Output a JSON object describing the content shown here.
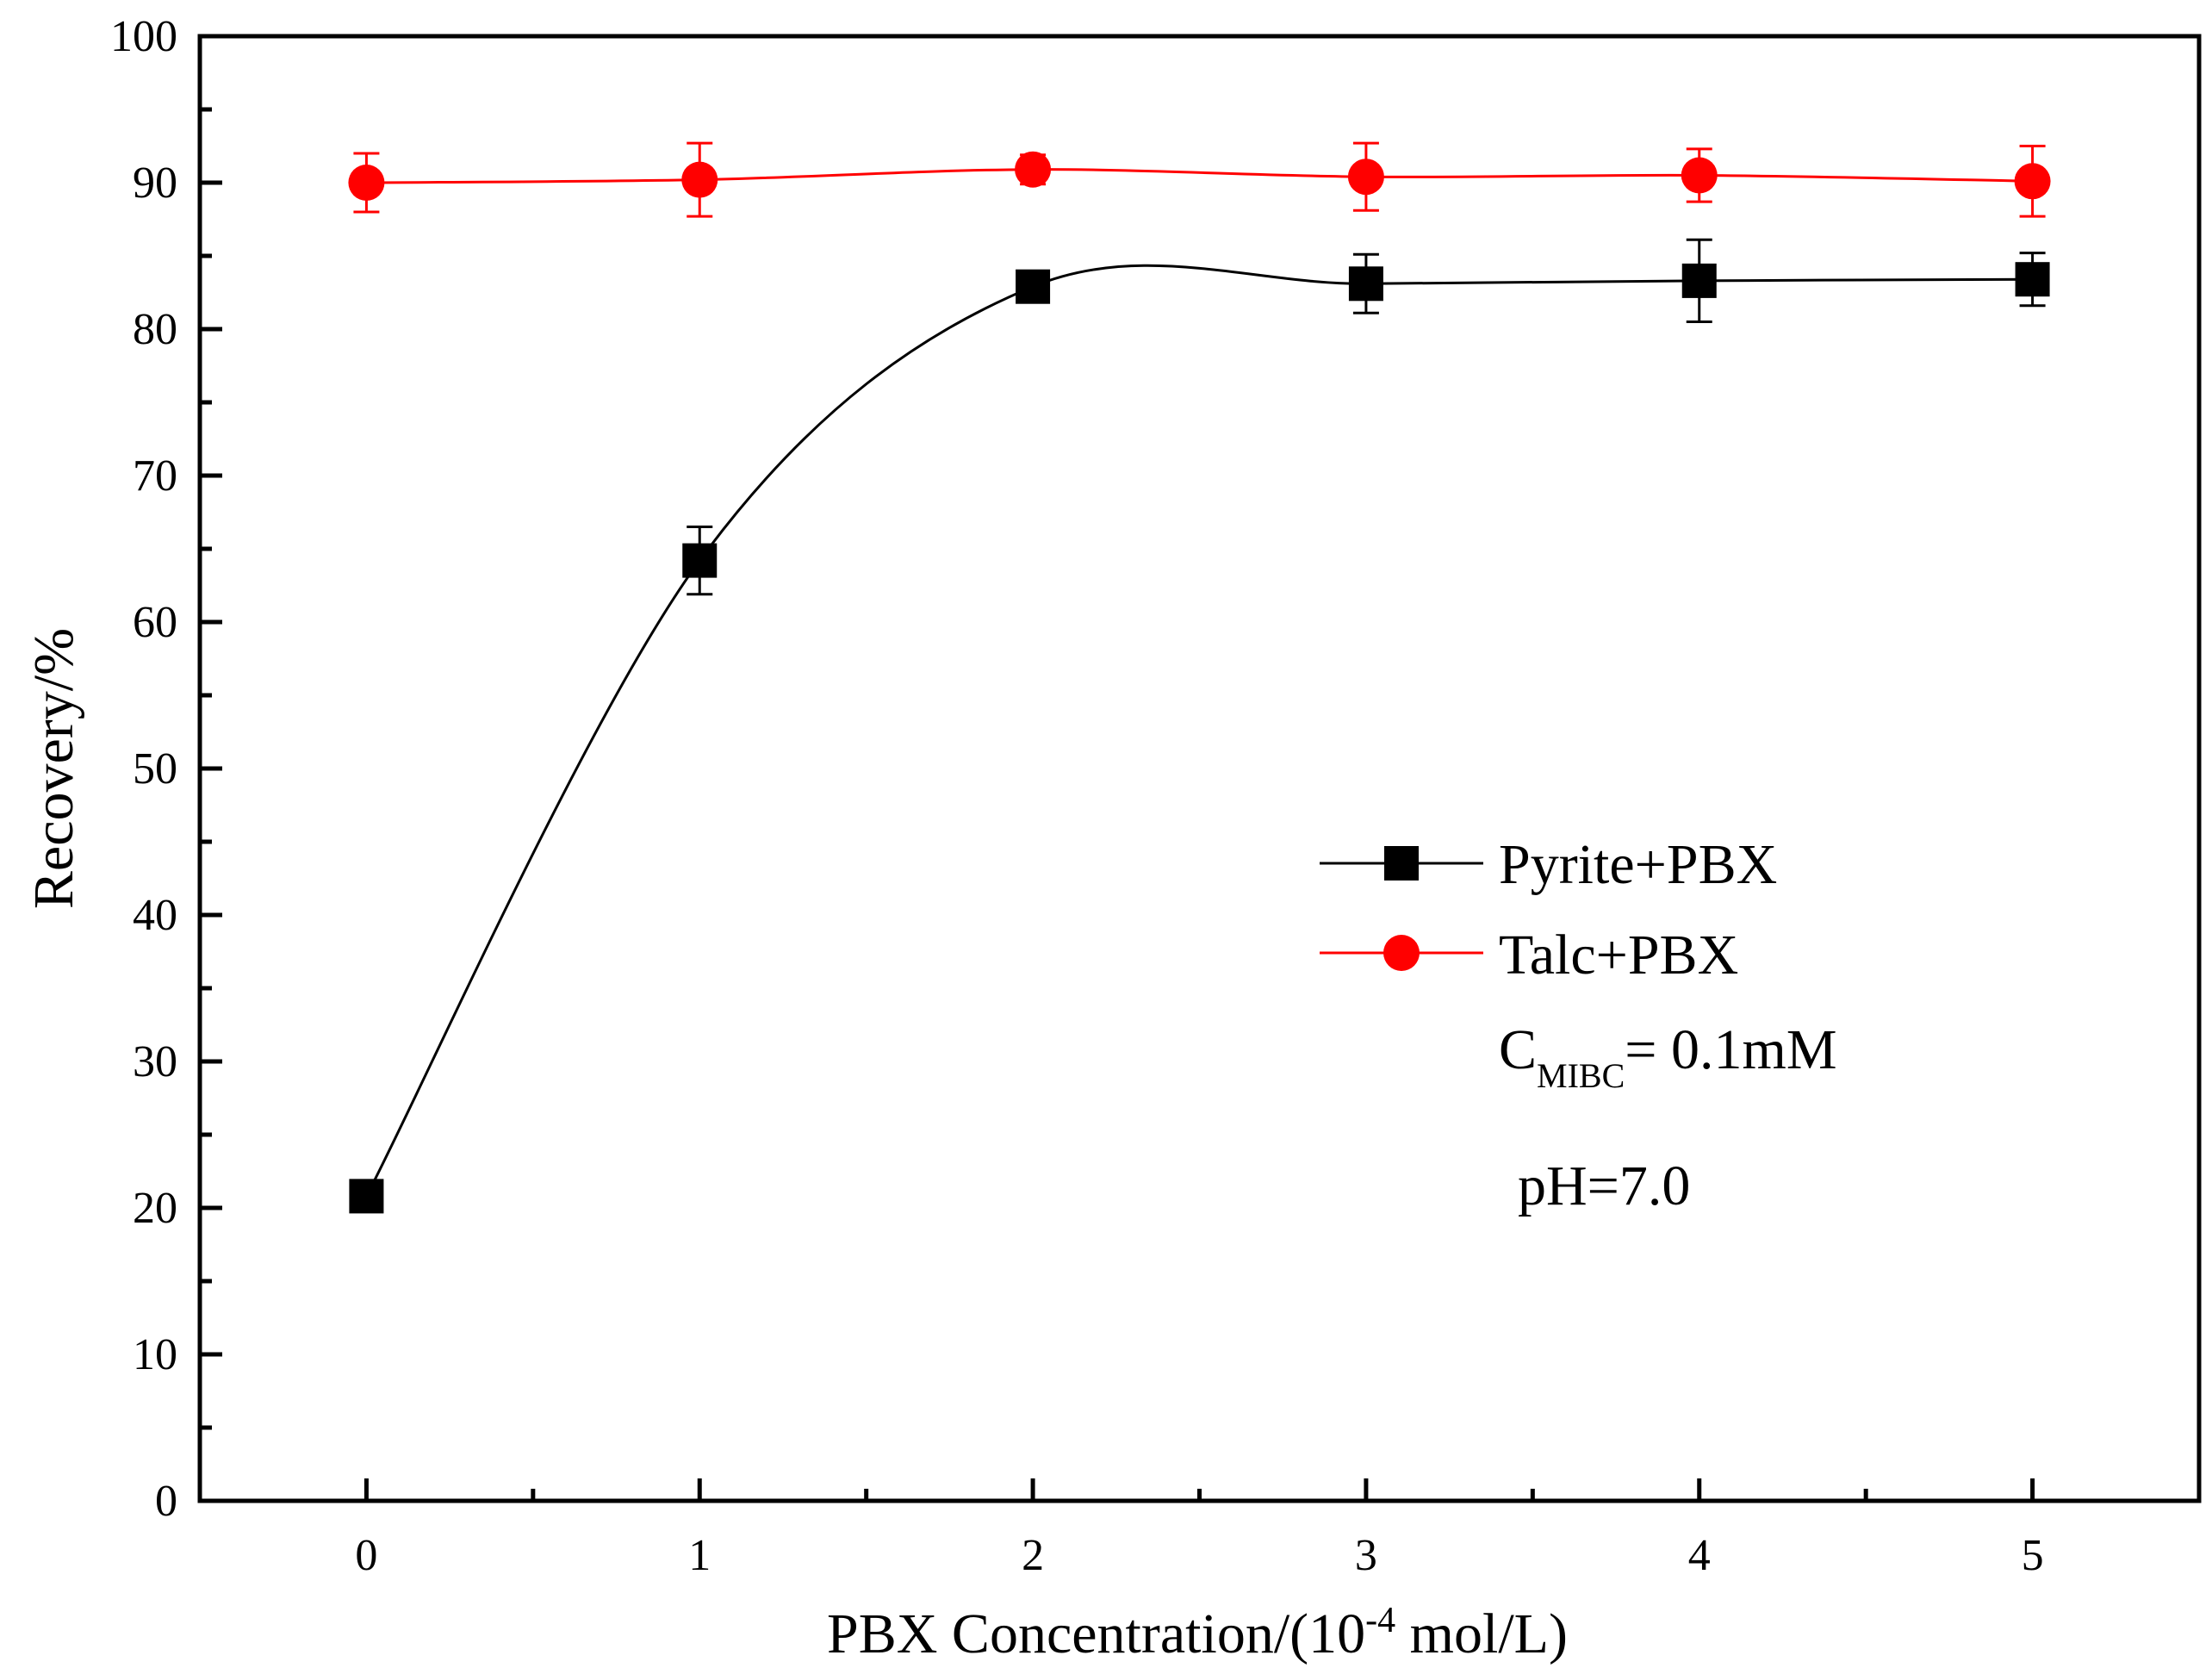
{
  "chart_data": {
    "type": "line",
    "xlabel": {
      "main": "PBX Concentration/(10",
      "sup": "-4",
      "rest": " mol/L)"
    },
    "ylabel": "Recovery/%",
    "xlim": [
      -0.5,
      5.5
    ],
    "ylim": [
      0,
      100
    ],
    "x_ticks": [
      0,
      1,
      2,
      3,
      4,
      5
    ],
    "y_ticks": [
      0,
      10,
      20,
      30,
      40,
      50,
      60,
      70,
      80,
      90,
      100
    ],
    "x": [
      0,
      1,
      2,
      3,
      4,
      5
    ],
    "series": [
      {
        "name": "Pyrite+PBX",
        "color": "#000000",
        "marker": "square",
        "values": [
          20.8,
          64.2,
          82.9,
          83.1,
          83.3,
          83.4
        ],
        "errors": [
          0.5,
          2.3,
          0.5,
          2.0,
          2.8,
          1.8
        ]
      },
      {
        "name": "Talc+PBX",
        "color": "#ff0000",
        "marker": "circle",
        "values": [
          90.0,
          90.2,
          90.9,
          90.4,
          90.5,
          90.1
        ],
        "errors": [
          2.0,
          2.5,
          1.0,
          2.3,
          1.8,
          2.4
        ]
      }
    ],
    "annotations": {
      "c_main": "C",
      "c_sub": "MIBC",
      "c_rest": "= 0.1mM",
      "ph": "pH=7.0"
    }
  }
}
